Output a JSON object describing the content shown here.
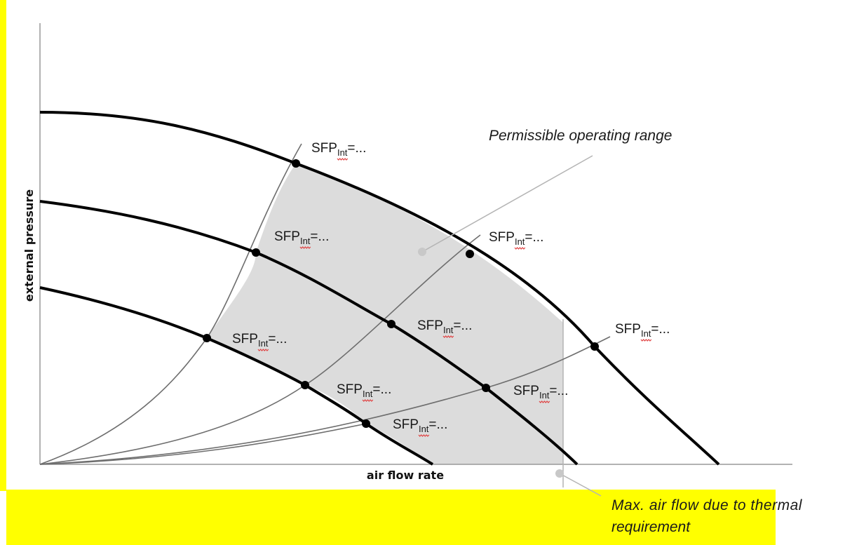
{
  "diagram": {
    "y_axis_label": "external pressure",
    "x_axis_label": "air flow rate",
    "region_label": "Permissible operating range",
    "max_flow_label_line1": "Max. air flow due to thermal",
    "max_flow_label_line2": "requirement",
    "sfp_label": {
      "prefix": "SFP",
      "subscript": "Int",
      "suffix": "=..."
    },
    "colors": {
      "highlight_yellow": "#ffff00",
      "region_fill": "#dcdcdc",
      "curve": "#000000",
      "system_line": "#6e6e6e",
      "leader_line": "#b4b4b4",
      "underline": "#e04040"
    }
  }
}
